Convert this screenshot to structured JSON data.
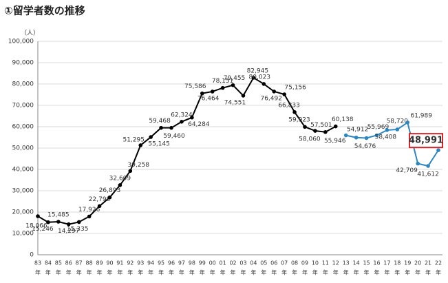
{
  "chart_data": {
    "type": "line",
    "title": "①留学者数の推移",
    "y_unit": "（人）",
    "x_unit": "年",
    "categories": [
      "83",
      "84",
      "85",
      "86",
      "87",
      "88",
      "89",
      "90",
      "91",
      "92",
      "93",
      "94",
      "95",
      "96",
      "97",
      "98",
      "99",
      "00",
      "01",
      "02",
      "03",
      "04",
      "05",
      "06",
      "07",
      "08",
      "09",
      "10",
      "11",
      "12",
      "13",
      "14",
      "15",
      "16",
      "17",
      "18",
      "19",
      "20",
      "21",
      "22"
    ],
    "ylim": [
      0,
      100000
    ],
    "yticks": [
      0,
      {
        "value": 10000,
        "label": "10,000"
      },
      {
        "value": 20000,
        "label": "20,000"
      },
      {
        "value": 30000,
        "label": "30,000"
      },
      {
        "value": 40000,
        "label": "40,000"
      },
      {
        "value": 50000,
        "label": "50,000"
      },
      {
        "value": 60000,
        "label": "60,000"
      },
      {
        "value": 70000,
        "label": "70,000"
      },
      {
        "value": 80000,
        "label": "80,000"
      },
      {
        "value": 90000,
        "label": "90,000"
      },
      {
        "value": 100000,
        "label": "100,000"
      }
    ],
    "grid": true,
    "series": [
      {
        "color": "#000000",
        "values": [
          18066,
          15246,
          15485,
          14297,
          15335,
          17926,
          22798,
          26893,
          32609,
          39258,
          51295,
          55145,
          59468,
          59460,
          62324,
          64284,
          75586,
          76464,
          78151,
          79455,
          74551,
          82945,
          80023,
          76492,
          75156,
          66833,
          59923,
          58060,
          57501,
          60138,
          null,
          null,
          null,
          null,
          null,
          null,
          null,
          null,
          null,
          null
        ],
        "value_labels": [
          "18,066",
          "15,246",
          "15,485",
          "14,297",
          "15,335",
          "17,926",
          "22,798",
          "26,893",
          "32,609",
          "39,258",
          "51,295",
          "55,145",
          "59,468",
          "59,460",
          "62,324",
          "64,284",
          "75,586",
          "76,464",
          "78,151",
          "79,455",
          "74,551",
          "82,945",
          "80,023",
          "76,492",
          "75,156",
          "66,833",
          "59,923",
          "58,060",
          "57,501",
          "60,138",
          null,
          null,
          null,
          null,
          null,
          null,
          null,
          null,
          null,
          null
        ]
      },
      {
        "color": "#2e86c1",
        "highlight_last": true,
        "values": [
          null,
          null,
          null,
          null,
          null,
          null,
          null,
          null,
          null,
          null,
          null,
          null,
          null,
          null,
          null,
          null,
          null,
          null,
          null,
          null,
          null,
          null,
          null,
          null,
          null,
          null,
          null,
          null,
          null,
          null,
          55946,
          54912,
          54676,
          55969,
          58408,
          58720,
          61989,
          42709,
          41612,
          48991
        ],
        "value_labels": [
          null,
          null,
          null,
          null,
          null,
          null,
          null,
          null,
          null,
          null,
          null,
          null,
          null,
          null,
          null,
          null,
          null,
          null,
          null,
          null,
          null,
          null,
          null,
          null,
          null,
          null,
          null,
          null,
          null,
          null,
          "55,946",
          "54,912",
          "54,676",
          "55,969",
          "58,408",
          "58,720",
          "61,989",
          "42,709",
          "41,612",
          "48,991"
        ]
      }
    ]
  }
}
